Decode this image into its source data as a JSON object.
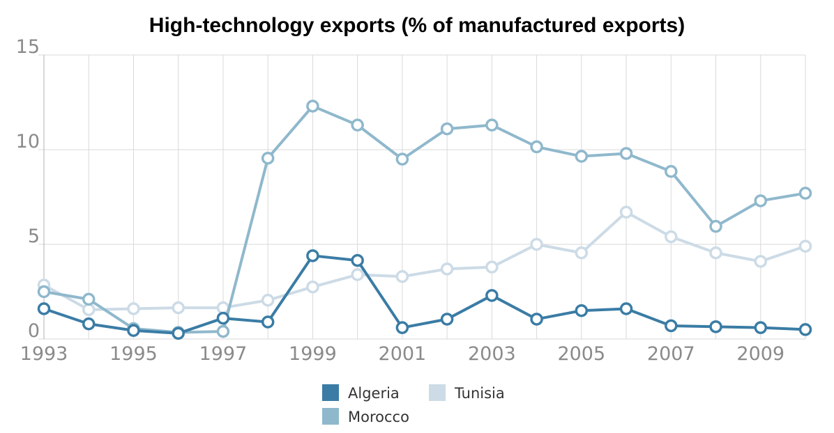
{
  "chart_data": {
    "type": "line",
    "title": "High-technology exports (% of manufactured exports)",
    "xlabel": "",
    "ylabel": "",
    "x": [
      1993,
      1994,
      1995,
      1996,
      1997,
      1998,
      1999,
      2000,
      2001,
      2002,
      2003,
      2004,
      2005,
      2006,
      2007,
      2008,
      2009,
      2010
    ],
    "x_tick_labels": [
      "1993",
      "1995",
      "1997",
      "1999",
      "2001",
      "2003",
      "2005",
      "2007",
      "2009"
    ],
    "y_tick_labels": [
      "0",
      "5",
      "10",
      "15"
    ],
    "xlim": [
      1993,
      2010
    ],
    "ylim": [
      0,
      15
    ],
    "grid": true,
    "legend_position": "bottom",
    "series": [
      {
        "name": "Algeria",
        "color": "#3a7ca5",
        "values": [
          1.6,
          0.8,
          0.45,
          0.3,
          1.1,
          0.9,
          4.4,
          4.15,
          0.6,
          1.05,
          2.3,
          1.05,
          1.5,
          1.6,
          0.7,
          0.65,
          0.6,
          0.5
        ]
      },
      {
        "name": "Morocco",
        "color": "#8fb8cc",
        "values": [
          2.5,
          2.1,
          0.55,
          0.35,
          0.4,
          9.55,
          12.3,
          11.3,
          9.5,
          11.1,
          11.3,
          10.15,
          9.65,
          9.8,
          8.85,
          5.95,
          7.3,
          7.7
        ]
      },
      {
        "name": "Tunisia",
        "color": "#ccdbe6",
        "values": [
          2.85,
          1.55,
          1.6,
          1.65,
          1.65,
          2.05,
          2.75,
          3.4,
          3.3,
          3.7,
          3.8,
          5.0,
          4.55,
          6.7,
          5.4,
          4.55,
          4.1,
          4.9
        ]
      }
    ]
  }
}
